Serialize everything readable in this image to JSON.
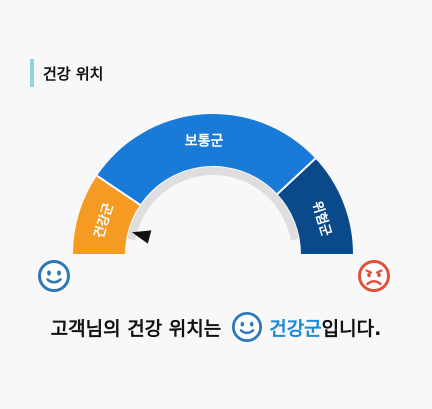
{
  "section": {
    "title": "건강 위치"
  },
  "gauge": {
    "segments": [
      {
        "label": "건강군",
        "color": "#0b4a8a"
      },
      {
        "label": "보통군",
        "color": "#1a7ad8"
      },
      {
        "label": "위험군",
        "color": "#f59a22"
      }
    ],
    "current": "건강군"
  },
  "legend": {
    "left_icon": "smile-icon",
    "right_icon": "frown-icon",
    "left_color": "#2e78b8",
    "right_color": "#e0503c"
  },
  "result": {
    "prefix": "고객님의 건강 위치는",
    "status": "건강군",
    "suffix": "입니다."
  }
}
